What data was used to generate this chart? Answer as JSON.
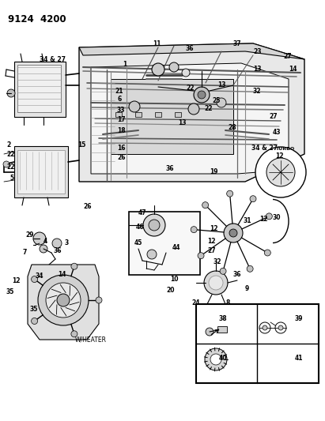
{
  "title": "9124  4200",
  "bg_color": "#c8c8c8",
  "white": "#ffffff",
  "black": "#000000",
  "gray_light": "#e0e0e0",
  "gray_mid": "#b0b0b0",
  "gray_dark": "#808080",
  "figsize": [
    4.11,
    5.33
  ],
  "dpi": 100
}
